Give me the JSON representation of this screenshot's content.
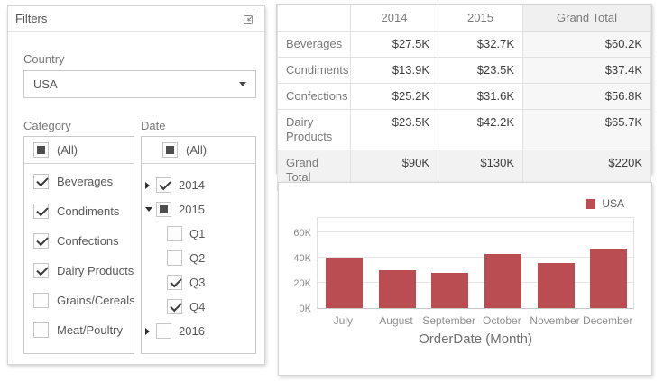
{
  "filters_panel": {
    "title": "Filters",
    "country": {
      "label": "Country",
      "value": "USA"
    },
    "category": {
      "label": "Category",
      "all_label": "(All)",
      "items": [
        {
          "label": "Beverages",
          "state": "checked"
        },
        {
          "label": "Condiments",
          "state": "checked"
        },
        {
          "label": "Confections",
          "state": "checked"
        },
        {
          "label": "Dairy Products",
          "state": "checked"
        },
        {
          "label": "Grains/Cereals",
          "state": "unchecked"
        },
        {
          "label": "Meat/Poultry",
          "state": "unchecked"
        }
      ]
    },
    "date": {
      "label": "Date",
      "all_label": "(All)",
      "items": [
        {
          "label": "2014",
          "state": "checked",
          "expander": "collapsed",
          "level": 0
        },
        {
          "label": "2015",
          "state": "indeterminate",
          "expander": "expanded",
          "level": 0
        },
        {
          "label": "Q1",
          "state": "unchecked",
          "level": 1
        },
        {
          "label": "Q2",
          "state": "unchecked",
          "level": 1
        },
        {
          "label": "Q3",
          "state": "checked",
          "level": 1
        },
        {
          "label": "Q4",
          "state": "checked",
          "level": 1
        },
        {
          "label": "2016",
          "state": "unchecked",
          "expander": "collapsed",
          "level": 0
        }
      ]
    }
  },
  "pivot_table": {
    "corner_label": "",
    "column_headers": [
      "2014",
      "2015",
      "Grand Total"
    ],
    "rows": [
      {
        "header": "Beverages",
        "values": [
          "$27.5K",
          "$32.7K",
          "$60.2K"
        ],
        "is_total": false
      },
      {
        "header": "Condiments",
        "values": [
          "$13.9K",
          "$23.5K",
          "$37.4K"
        ],
        "is_total": false
      },
      {
        "header": "Confections",
        "values": [
          "$25.2K",
          "$31.6K",
          "$56.8K"
        ],
        "is_total": false
      },
      {
        "header": "Dairy Products",
        "values": [
          "$23.5K",
          "$42.2K",
          "$65.7K"
        ],
        "is_total": false
      },
      {
        "header": "Grand Total",
        "values": [
          "$90K",
          "$130K",
          "$220K"
        ],
        "is_total": true
      }
    ]
  },
  "chart_data": {
    "type": "bar",
    "title": "",
    "categories": [
      "July",
      "August",
      "September",
      "October",
      "November",
      "December"
    ],
    "series": [
      {
        "name": "USA",
        "values": [
          40000,
          30000,
          28000,
          43000,
          36000,
          47000
        ],
        "color": "#ba4d51"
      }
    ],
    "xlabel": "OrderDate (Month)",
    "ylabel": "",
    "ylim": [
      0,
      73000
    ],
    "yticks": [
      {
        "label": "0K",
        "value": 0
      },
      {
        "label": "20K",
        "value": 20000
      },
      {
        "label": "40K",
        "value": 40000
      },
      {
        "label": "60K",
        "value": 60000
      }
    ],
    "grid": true,
    "legend_position": "top-right"
  }
}
